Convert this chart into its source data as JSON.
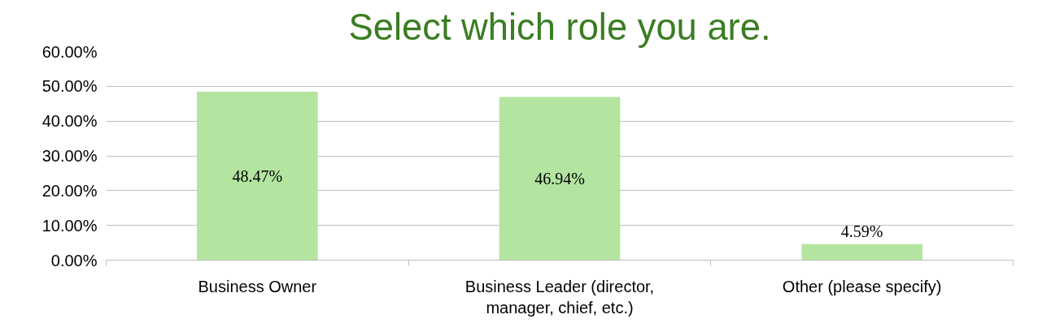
{
  "chart_data": {
    "type": "bar",
    "title": "Select which role you are.",
    "categories": [
      "Business Owner",
      "Business Leader (director, manager, chief, etc.)",
      "Other (please specify)"
    ],
    "values": [
      48.47,
      46.94,
      4.59
    ],
    "value_labels": [
      "48.47%",
      "46.94%",
      "4.59%"
    ],
    "color": "#b3e5a0",
    "ylim": [
      0,
      60
    ],
    "yticks": [
      {
        "value": 0,
        "label": "0.00%"
      },
      {
        "value": 10,
        "label": "10.00%"
      },
      {
        "value": 20,
        "label": "20.00%"
      },
      {
        "value": 30,
        "label": "30.00%"
      },
      {
        "value": 40,
        "label": "40.00%"
      },
      {
        "value": 50,
        "label": "50.00%"
      },
      {
        "value": 60,
        "label": "60.00%"
      }
    ],
    "grid": "y"
  }
}
